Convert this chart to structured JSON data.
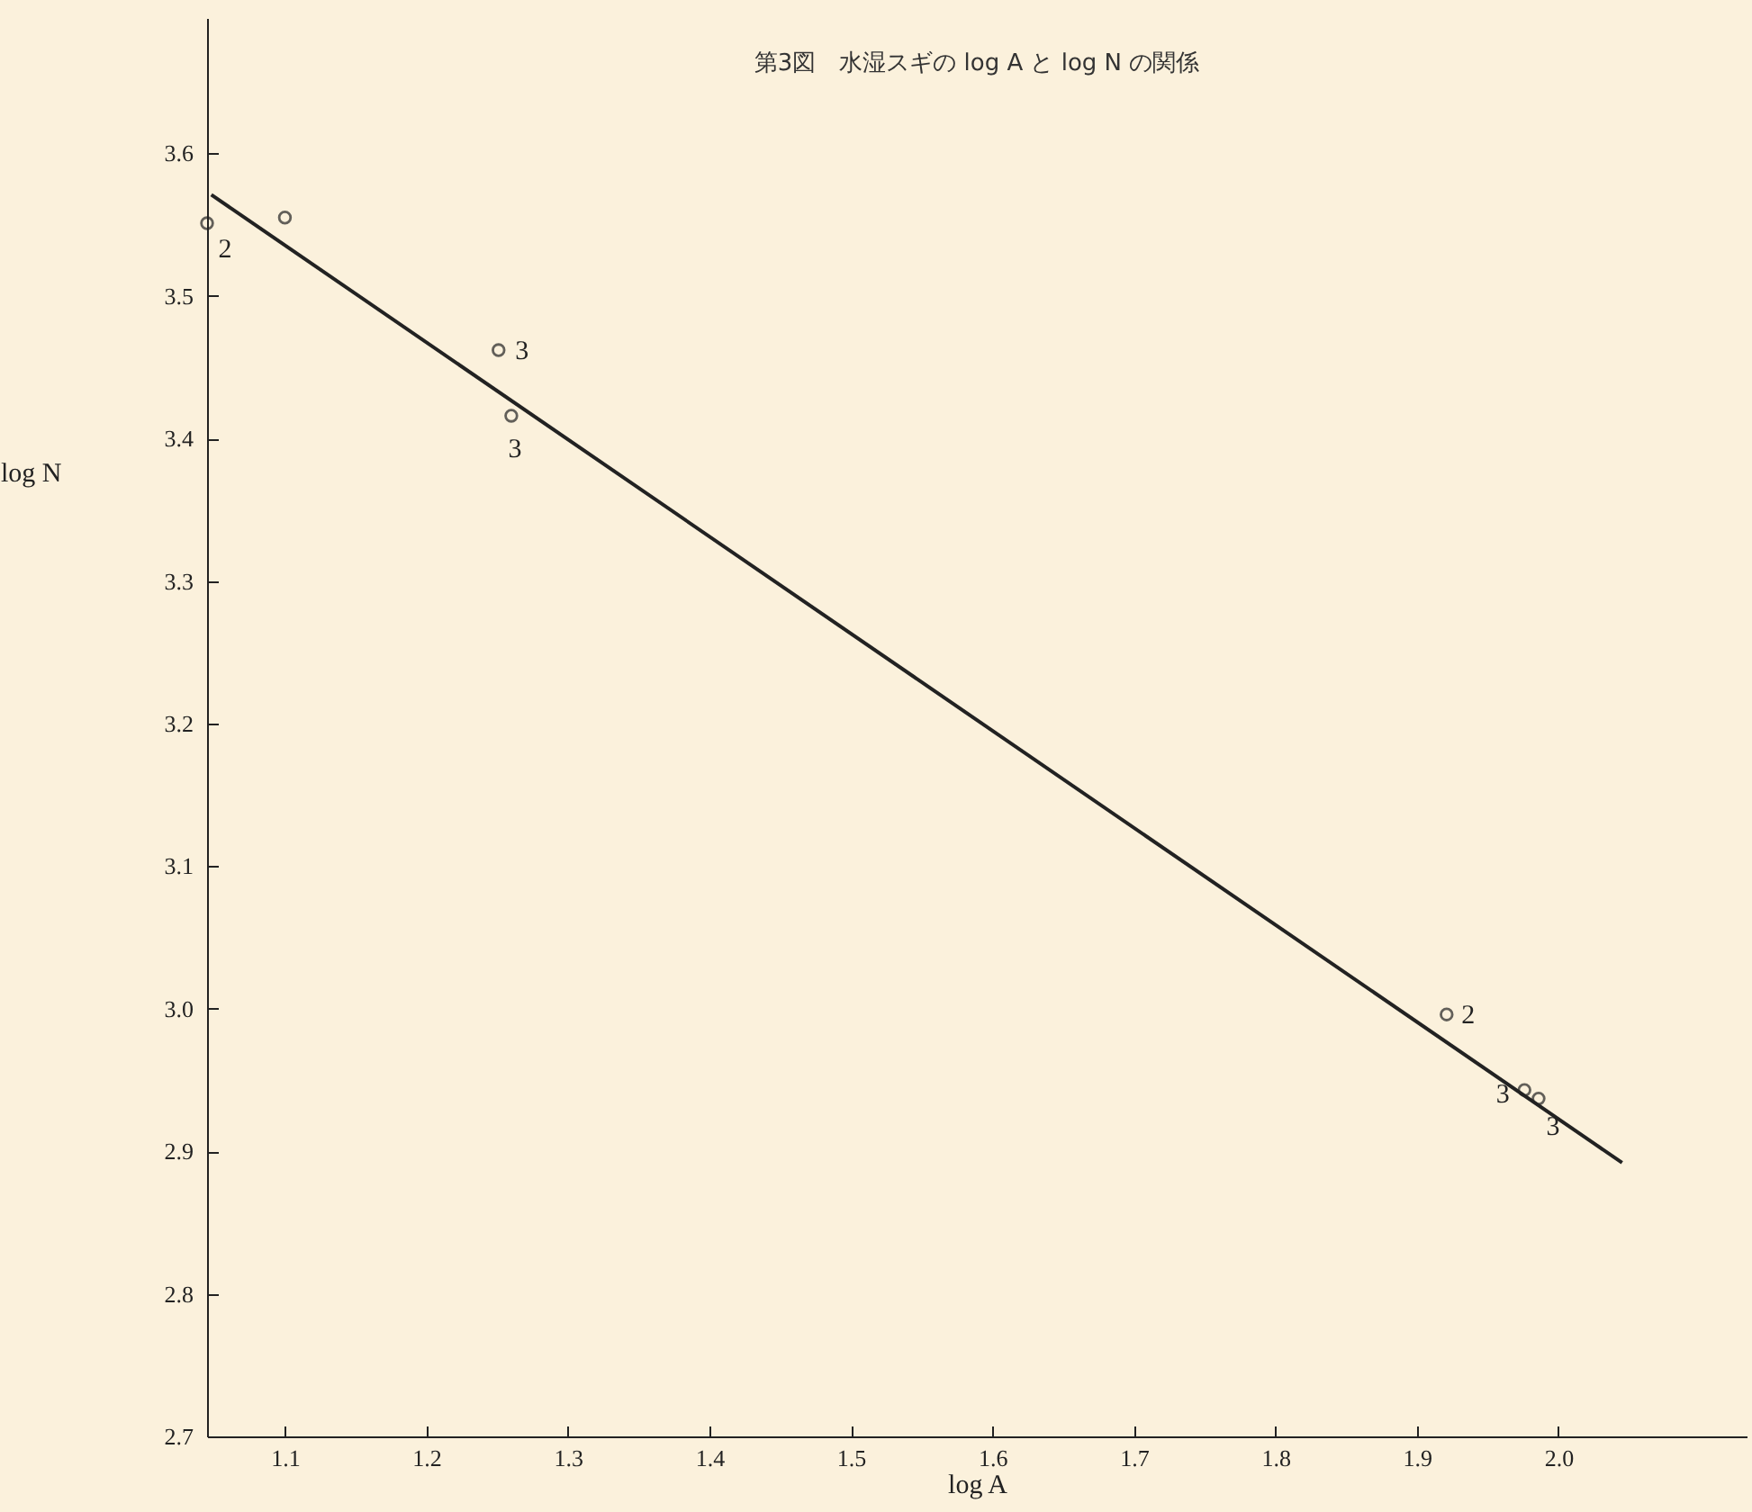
{
  "chart_data": {
    "type": "scatter",
    "title": "第3図　水湿スギの log A と log N の関係",
    "xlabel": "log A",
    "ylabel": "log N",
    "xlim": [
      1.045,
      2.133
    ],
    "ylim": [
      2.7,
      3.695
    ],
    "xticks": [
      1.1,
      1.2,
      1.3,
      1.4,
      1.5,
      1.6,
      1.7,
      1.8,
      1.9,
      {
        "value": 2.0,
        "label": "2.0"
      }
    ],
    "yticks": [
      {
        "value": 2.7,
        "label": "2.7"
      },
      {
        "value": 2.8,
        "label": "2.8"
      },
      {
        "value": 2.9,
        "label": "2.9"
      },
      {
        "value": 3.0,
        "label": "3.0"
      },
      3.1,
      3.2,
      3.3,
      3.4,
      3.5,
      3.6
    ],
    "series": [
      {
        "color": "#222222",
        "x": [
          1.045,
          1.1,
          1.251,
          1.26,
          1.921,
          1.976,
          1.986
        ],
        "values": [
          3.551,
          3.555,
          3.462,
          3.416,
          2.996,
          2.943,
          2.937
        ]
      },
      {
        "type": "line",
        "marker": "none",
        "color": "#222222",
        "x": [
          1.048,
          2.045
        ],
        "values": [
          3.571,
          2.892
        ]
      }
    ],
    "annotations": [
      {
        "text": "2",
        "x": 1.045,
        "y": 3.551
      },
      {
        "text": "3",
        "x": 1.251,
        "y": 3.462
      },
      {
        "text": "3",
        "x": 1.26,
        "y": 3.416
      },
      {
        "text": "2",
        "x": 1.921,
        "y": 2.996
      },
      {
        "text": "3",
        "x": 1.976,
        "y": 2.943
      },
      {
        "text": "3",
        "x": 1.986,
        "y": 2.937
      }
    ],
    "marker": "circle",
    "grid": false
  }
}
